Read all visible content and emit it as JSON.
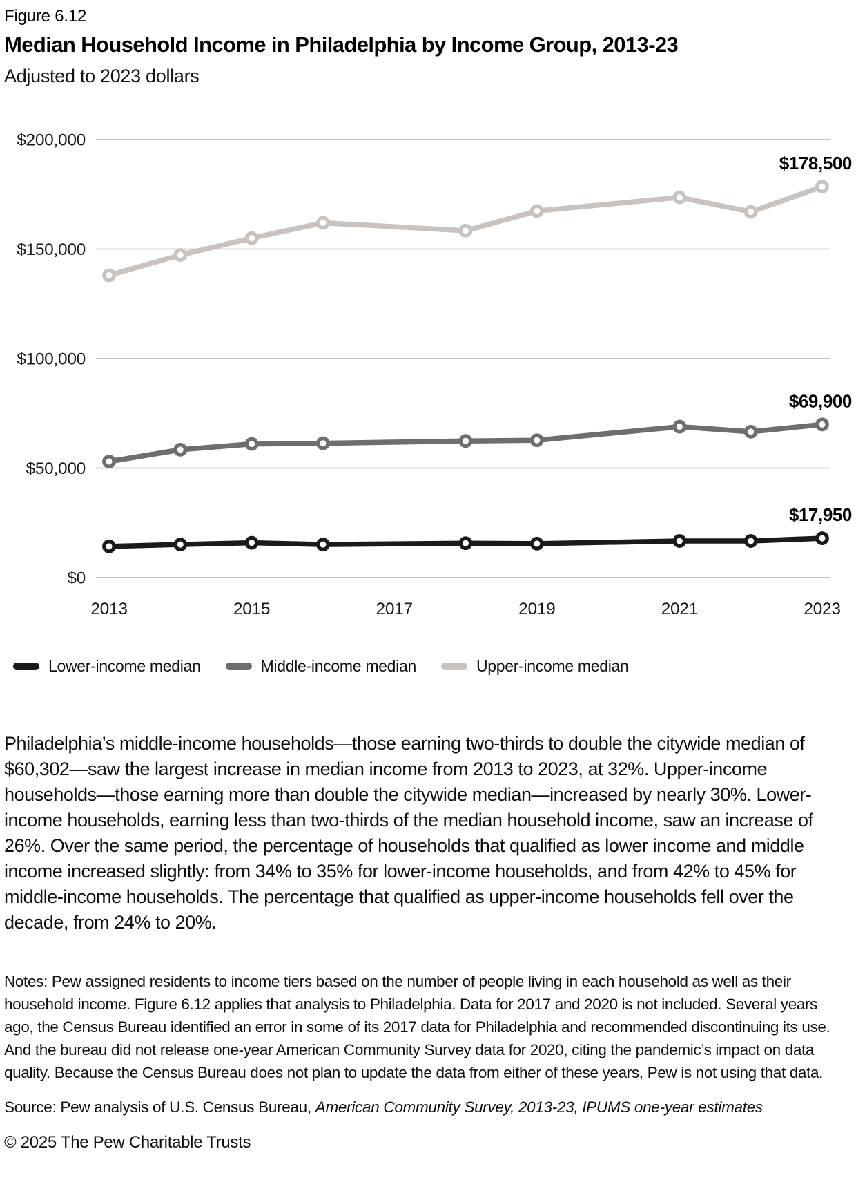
{
  "header": {
    "figure_label": "Figure 6.12",
    "title": "Median Household Income in Philadelphia by Income Group, 2013-23",
    "subtitle": "Adjusted to 2023 dollars"
  },
  "chart_data": {
    "type": "line",
    "x": [
      2013,
      2014,
      2015,
      2016,
      2018,
      2019,
      2021,
      2022,
      2023
    ],
    "x_omitted_years": [
      2017,
      2020
    ],
    "xlim": [
      2013,
      2023
    ],
    "x_tick_labels": [
      "2013",
      "2015",
      "2017",
      "2019",
      "2021",
      "2023"
    ],
    "ylim": [
      0,
      200000
    ],
    "y_tick_values": [
      0,
      50000,
      100000,
      150000,
      200000
    ],
    "y_tick_labels": [
      "$0",
      "$50,000",
      "$100,000",
      "$150,000",
      "$200,000"
    ],
    "grid": "horizontal",
    "legend_position": "bottom-left",
    "series": [
      {
        "name": "Lower-income median",
        "color": "#1a1a1a",
        "values": [
          14250,
          15100,
          15900,
          15100,
          15700,
          15500,
          16700,
          16700,
          17950
        ],
        "end_label": "$17,950"
      },
      {
        "name": "Middle-income median",
        "color": "#6e6e6e",
        "values": [
          53000,
          58400,
          61000,
          61300,
          62400,
          62700,
          68900,
          66600,
          69900
        ],
        "end_label": "$69,900"
      },
      {
        "name": "Upper-income median",
        "color": "#c9c3c0",
        "values": [
          138000,
          147300,
          155000,
          162000,
          158400,
          167400,
          173600,
          167000,
          178500
        ],
        "end_label": "$178,500"
      }
    ]
  },
  "body_paragraph": "Philadelphia’s middle-income households—those earning two-thirds to double the citywide median of $60,302—saw the largest increase in median income from 2013 to 2023, at 32%. Upper-income households—those earning more than double the citywide median—increased by nearly 30%. Lower-income households, earning less than two-thirds of the median household income, saw an increase of 26%. Over the same period, the percentage of households that qualified as lower income and middle income increased slightly: from 34% to 35% for lower-income households, and from 42% to 45% for middle-income households. The percentage that qualified as upper-income households fell over the decade, from 24% to 20%.",
  "notes": "Notes: Pew assigned residents to income tiers based on the number of people living in each household as well as their household income. Figure 6.12 applies that analysis to Philadelphia. Data for 2017 and 2020 is not included. Several years ago, the Census Bureau identified an error in some of its 2017 data for Philadelphia and recommended discontinuing its use. And the bureau did not release one-year American Community Survey data for 2020, citing the pandemic’s impact on data quality. Because the Census Bureau does not plan to update the data from either of these years, Pew is not using that data.",
  "source": {
    "prefix": "Source: Pew analysis of U.S. Census Bureau, ",
    "italic": "American Community Survey, 2013-23, IPUMS one-year estimates"
  },
  "copyright": "© 2025 The Pew Charitable Trusts"
}
